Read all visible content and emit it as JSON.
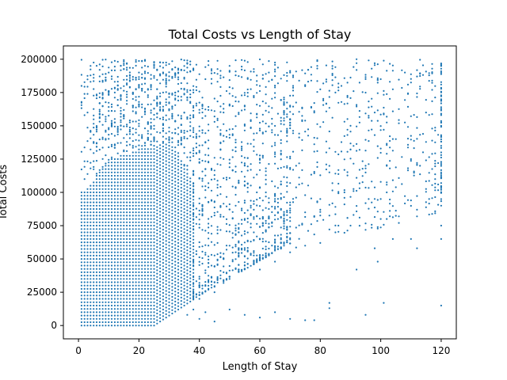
{
  "chart_data": {
    "type": "scatter",
    "title": "Total Costs vs Length of Stay",
    "xlabel": "Length of Stay",
    "ylabel": "Total Costs",
    "xlim": [
      -5,
      125
    ],
    "ylim": [
      -10000,
      210000
    ],
    "x_ticks": [
      0,
      20,
      40,
      60,
      80,
      100,
      120
    ],
    "x_tick_labels": [
      "0",
      "20",
      "40",
      "60",
      "80",
      "100",
      "120"
    ],
    "y_ticks": [
      0,
      25000,
      50000,
      75000,
      100000,
      125000,
      150000,
      175000,
      200000
    ],
    "y_tick_labels": [
      "0",
      "25000",
      "50000",
      "75000",
      "100000",
      "125000",
      "150000",
      "175000",
      "200000"
    ],
    "grid": false,
    "legend": "none",
    "series_color": "#1f77b4",
    "clusters": [
      {
        "x": [
          1,
          35
        ],
        "y": [
          0,
          100000
        ]
      },
      {
        "x": [
          5,
          40
        ],
        "y": [
          100000,
          200000
        ]
      },
      {
        "x": [
          36,
          50
        ],
        "y": [
          20000,
          150000
        ]
      },
      {
        "x": [
          50,
          70
        ],
        "y": [
          40000,
          200000
        ]
      },
      {
        "x": [
          70,
          120
        ],
        "y": [
          60000,
          200000
        ]
      },
      {
        "x": [
          120,
          120
        ],
        "y": [
          90000,
          200000
        ]
      }
    ],
    "scatter_points": [
      [
        1,
        180000
      ],
      [
        2,
        110000
      ],
      [
        3,
        160000
      ],
      [
        4,
        195000
      ],
      [
        4,
        118000
      ],
      [
        8,
        140000
      ],
      [
        10,
        190000
      ],
      [
        12,
        175000
      ],
      [
        14,
        150000
      ],
      [
        16,
        197000
      ],
      [
        18,
        165000
      ],
      [
        20,
        185000
      ],
      [
        22,
        130000
      ],
      [
        25,
        198000
      ],
      [
        28,
        175000
      ],
      [
        30,
        155000
      ],
      [
        32,
        188000
      ],
      [
        34,
        140000
      ],
      [
        36,
        120000
      ],
      [
        38,
        175000
      ],
      [
        40,
        130000
      ],
      [
        42,
        185000
      ],
      [
        45,
        110000
      ],
      [
        48,
        160000
      ],
      [
        50,
        195000
      ],
      [
        52,
        90000
      ],
      [
        55,
        150000
      ],
      [
        58,
        70000
      ],
      [
        60,
        180000
      ],
      [
        62,
        100000
      ],
      [
        65,
        130000
      ],
      [
        68,
        60000
      ],
      [
        70,
        190000
      ],
      [
        72,
        120000
      ],
      [
        75,
        85000
      ],
      [
        78,
        160000
      ],
      [
        80,
        95000
      ],
      [
        82,
        130000
      ],
      [
        85,
        175000
      ],
      [
        88,
        100000
      ],
      [
        90,
        150000
      ],
      [
        92,
        200000
      ],
      [
        95,
        120000
      ],
      [
        98,
        160000
      ],
      [
        100,
        185000
      ],
      [
        102,
        100000
      ],
      [
        105,
        140000
      ],
      [
        108,
        190000
      ],
      [
        110,
        125000
      ],
      [
        112,
        82000
      ],
      [
        115,
        160000
      ],
      [
        118,
        110000
      ],
      [
        120,
        195000
      ],
      [
        120,
        170000
      ],
      [
        120,
        150000
      ],
      [
        120,
        130000
      ],
      [
        120,
        115000
      ],
      [
        120,
        100000
      ],
      [
        120,
        90000
      ],
      [
        120,
        75000
      ],
      [
        120,
        65000
      ],
      [
        120,
        15000
      ],
      [
        36,
        8000
      ],
      [
        38,
        12000
      ],
      [
        40,
        5000
      ],
      [
        42,
        10000
      ],
      [
        45,
        3000
      ],
      [
        50,
        12000
      ],
      [
        55,
        8000
      ],
      [
        60,
        6000
      ],
      [
        65,
        10000
      ],
      [
        70,
        5000
      ],
      [
        75,
        4000
      ],
      [
        78,
        4000
      ],
      [
        83,
        17000
      ],
      [
        83,
        13000
      ],
      [
        95,
        8000
      ],
      [
        101,
        17000
      ],
      [
        40,
        20000
      ],
      [
        45,
        25000
      ],
      [
        48,
        32000
      ],
      [
        50,
        35000
      ],
      [
        55,
        45000
      ],
      [
        60,
        42000
      ],
      [
        65,
        48000
      ],
      [
        70,
        55000
      ],
      [
        75,
        60000
      ],
      [
        80,
        62000
      ],
      [
        85,
        70000
      ],
      [
        90,
        75000
      ],
      [
        92,
        42000
      ],
      [
        98,
        58000
      ],
      [
        99,
        48000
      ],
      [
        100,
        80000
      ],
      [
        104,
        65000
      ],
      [
        106,
        82000
      ],
      [
        110,
        65000
      ],
      [
        112,
        58000
      ],
      [
        116,
        95000
      ],
      [
        119,
        122000
      ]
    ]
  }
}
